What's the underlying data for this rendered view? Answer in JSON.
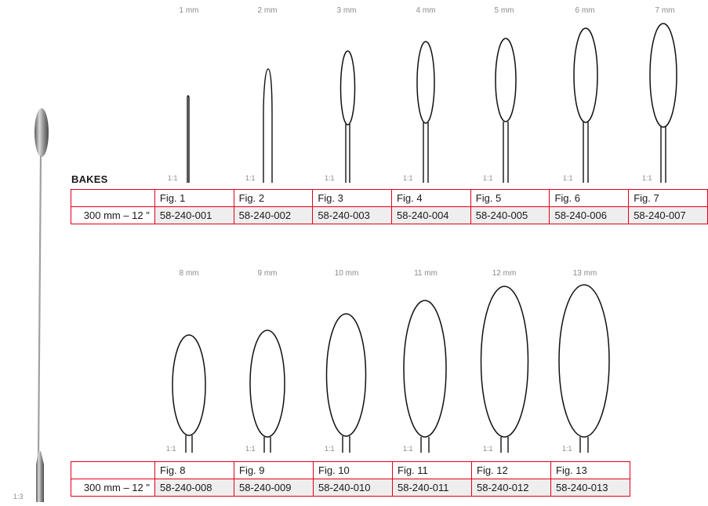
{
  "section_title": "BAKES",
  "overview_scale": "1:3",
  "detail_scale": "1:1",
  "row1": {
    "sizes": [
      "1 mm",
      "2 mm",
      "3 mm",
      "4 mm",
      "5 mm",
      "6 mm",
      "7 mm"
    ],
    "figures": [
      "Fig. 1",
      "Fig. 2",
      "Fig. 3",
      "Fig. 4",
      "Fig. 5",
      "Fig. 6",
      "Fig. 7"
    ],
    "length_label": "300 mm – 12 \"",
    "articles": [
      "58-240-001",
      "58-240-002",
      "58-240-003",
      "58-240-004",
      "58-240-005",
      "58-240-006",
      "58-240-007"
    ]
  },
  "row2": {
    "sizes": [
      "8 mm",
      "9 mm",
      "10 mm",
      "11 mm",
      "12 mm",
      "13 mm"
    ],
    "figures": [
      "Fig. 8",
      "Fig. 9",
      "Fig. 10",
      "Fig. 11",
      "Fig. 12",
      "Fig. 13"
    ],
    "length_label": "300 mm – 12 \"",
    "articles": [
      "58-240-008",
      "58-240-009",
      "58-240-010",
      "58-240-011",
      "58-240-012",
      "58-240-013"
    ]
  },
  "colors": {
    "table_border": "#e2001a",
    "article_cell_bg": "#eeeeee",
    "size_label": "#8a8a8a"
  }
}
